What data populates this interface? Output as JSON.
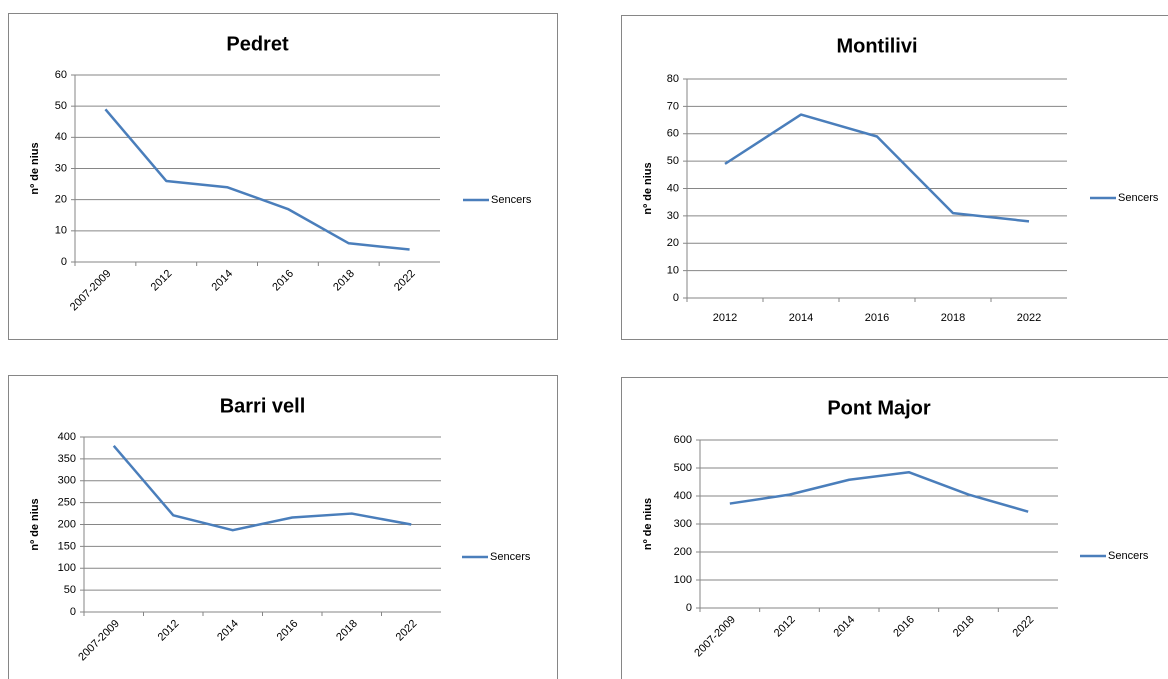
{
  "chart_data": [
    {
      "type": "line",
      "title": "Pedret",
      "y_label": "nº de nius",
      "categories": [
        "2007-2009",
        "2012",
        "2014",
        "2016",
        "2018",
        "2022"
      ],
      "series": [
        {
          "name": "Sencers",
          "color": "#4a7ebb",
          "values": [
            49,
            26,
            24,
            17,
            6,
            4
          ]
        }
      ],
      "ylim": [
        0,
        60
      ],
      "yticks": [
        0,
        10,
        20,
        30,
        40,
        50,
        60
      ],
      "grid": true,
      "legend": "right"
    },
    {
      "type": "line",
      "title": "Montilivi",
      "y_label": "nº de nius",
      "categories": [
        "2012",
        "2014",
        "2016",
        "2018",
        "2022"
      ],
      "series": [
        {
          "name": "Sencers",
          "color": "#4a7ebb",
          "values": [
            49,
            67,
            59,
            31,
            28
          ]
        }
      ],
      "ylim": [
        0,
        80
      ],
      "yticks": [
        0,
        10,
        20,
        30,
        40,
        50,
        60,
        70,
        80
      ],
      "grid": true,
      "legend": "right"
    },
    {
      "type": "line",
      "title": "Barri vell",
      "y_label": "nº de nius",
      "categories": [
        "2007-2009",
        "2012",
        "2014",
        "2016",
        "2018",
        "2022"
      ],
      "series": [
        {
          "name": "Sencers",
          "color": "#4a7ebb",
          "values": [
            380,
            221,
            187,
            216,
            225,
            200
          ]
        }
      ],
      "ylim": [
        0,
        400
      ],
      "yticks": [
        0,
        50,
        100,
        150,
        200,
        250,
        300,
        350,
        400
      ],
      "grid": true,
      "legend": "right"
    },
    {
      "type": "line",
      "title": "Pont Major",
      "y_label": "nº de nius",
      "categories": [
        "2007-2009",
        "2012",
        "2014",
        "2016",
        "2018",
        "2022"
      ],
      "series": [
        {
          "name": "Sencers",
          "color": "#4a7ebb",
          "values": [
            373,
            405,
            458,
            485,
            405,
            344
          ]
        }
      ],
      "ylim": [
        0,
        600
      ],
      "yticks": [
        0,
        100,
        200,
        300,
        400,
        500,
        600
      ],
      "grid": true,
      "legend": "right"
    }
  ]
}
